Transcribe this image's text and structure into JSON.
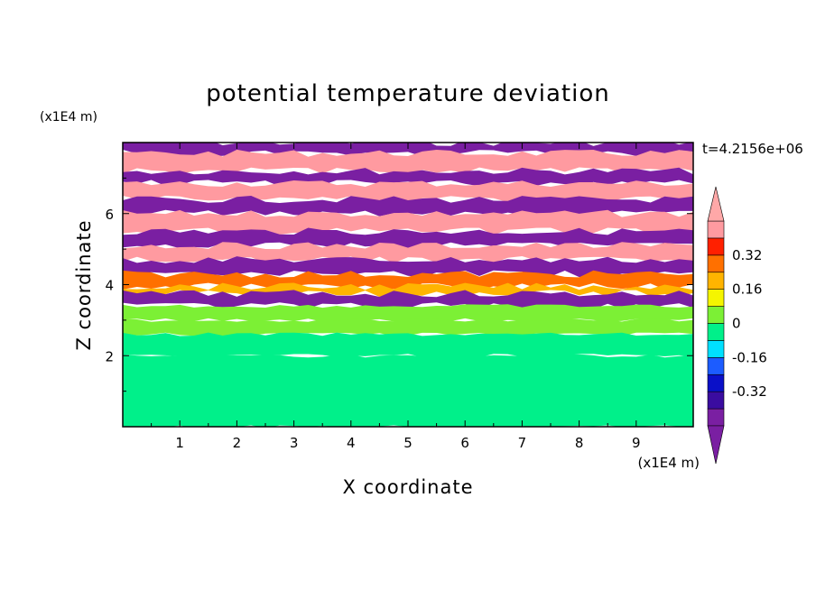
{
  "chart_data": {
    "type": "heatmap",
    "title": "potential temperature deviation",
    "xlabel": "X coordinate",
    "ylabel": "Z coordinate",
    "x_unit": "(x1E4 m)",
    "y_unit": "(x1E4 m)",
    "time_label": "t=4.2156e+06",
    "xlim": [
      0,
      10
    ],
    "ylim": [
      0,
      8
    ],
    "x_ticks": [
      "1",
      "2",
      "3",
      "4",
      "5",
      "6",
      "7",
      "8",
      "9"
    ],
    "y_ticks": [
      "2",
      "4",
      "6"
    ],
    "colorbar": {
      "levels": [
        -0.48,
        -0.4,
        -0.32,
        -0.24,
        -0.16,
        -0.08,
        0,
        0.08,
        0.16,
        0.24,
        0.32,
        0.4,
        0.48
      ],
      "labels": [
        "0.32",
        "0.16",
        "0",
        "-0.16",
        "-0.32"
      ],
      "label_values": [
        0.32,
        0.16,
        0,
        -0.16,
        -0.32
      ],
      "colors": [
        "#7a1fa2",
        "#3a0ca0",
        "#0a10c8",
        "#1c5cff",
        "#00e0ff",
        "#00f08a",
        "#7cf035",
        "#f5f500",
        "#ffb400",
        "#ff7000",
        "#ff2000",
        "#ff9aa0"
      ],
      "under_color": "#7a1fa2",
      "over_color": "#ffa8a8",
      "extend": "both"
    },
    "field_bands": [
      {
        "z": [
          7.7,
          8.0
        ],
        "value": -0.5
      },
      {
        "z": [
          7.2,
          7.7
        ],
        "value": 0.45
      },
      {
        "z": [
          6.85,
          7.2
        ],
        "value": -0.5
      },
      {
        "z": [
          6.4,
          6.85
        ],
        "value": 0.45
      },
      {
        "z": [
          6.0,
          6.4
        ],
        "value": -0.5
      },
      {
        "z": [
          5.5,
          6.0
        ],
        "value": 0.45
      },
      {
        "z": [
          5.1,
          5.5
        ],
        "value": -0.5
      },
      {
        "z": [
          4.7,
          5.1
        ],
        "value": 0.42
      },
      {
        "z": [
          4.3,
          4.7
        ],
        "value": -0.5
      },
      {
        "z": [
          3.95,
          4.3
        ],
        "value": 0.3
      },
      {
        "z": [
          3.75,
          3.95
        ],
        "value": 0.2
      },
      {
        "z": [
          3.4,
          3.75
        ],
        "value": -0.5
      },
      {
        "z": [
          3.0,
          3.4
        ],
        "value": 0.05
      },
      {
        "z": [
          2.6,
          3.0
        ],
        "value": 0.02
      },
      {
        "z": [
          2.0,
          2.6
        ],
        "value": -0.02
      },
      {
        "z": [
          0.0,
          2.0
        ],
        "value": -0.05
      }
    ]
  }
}
